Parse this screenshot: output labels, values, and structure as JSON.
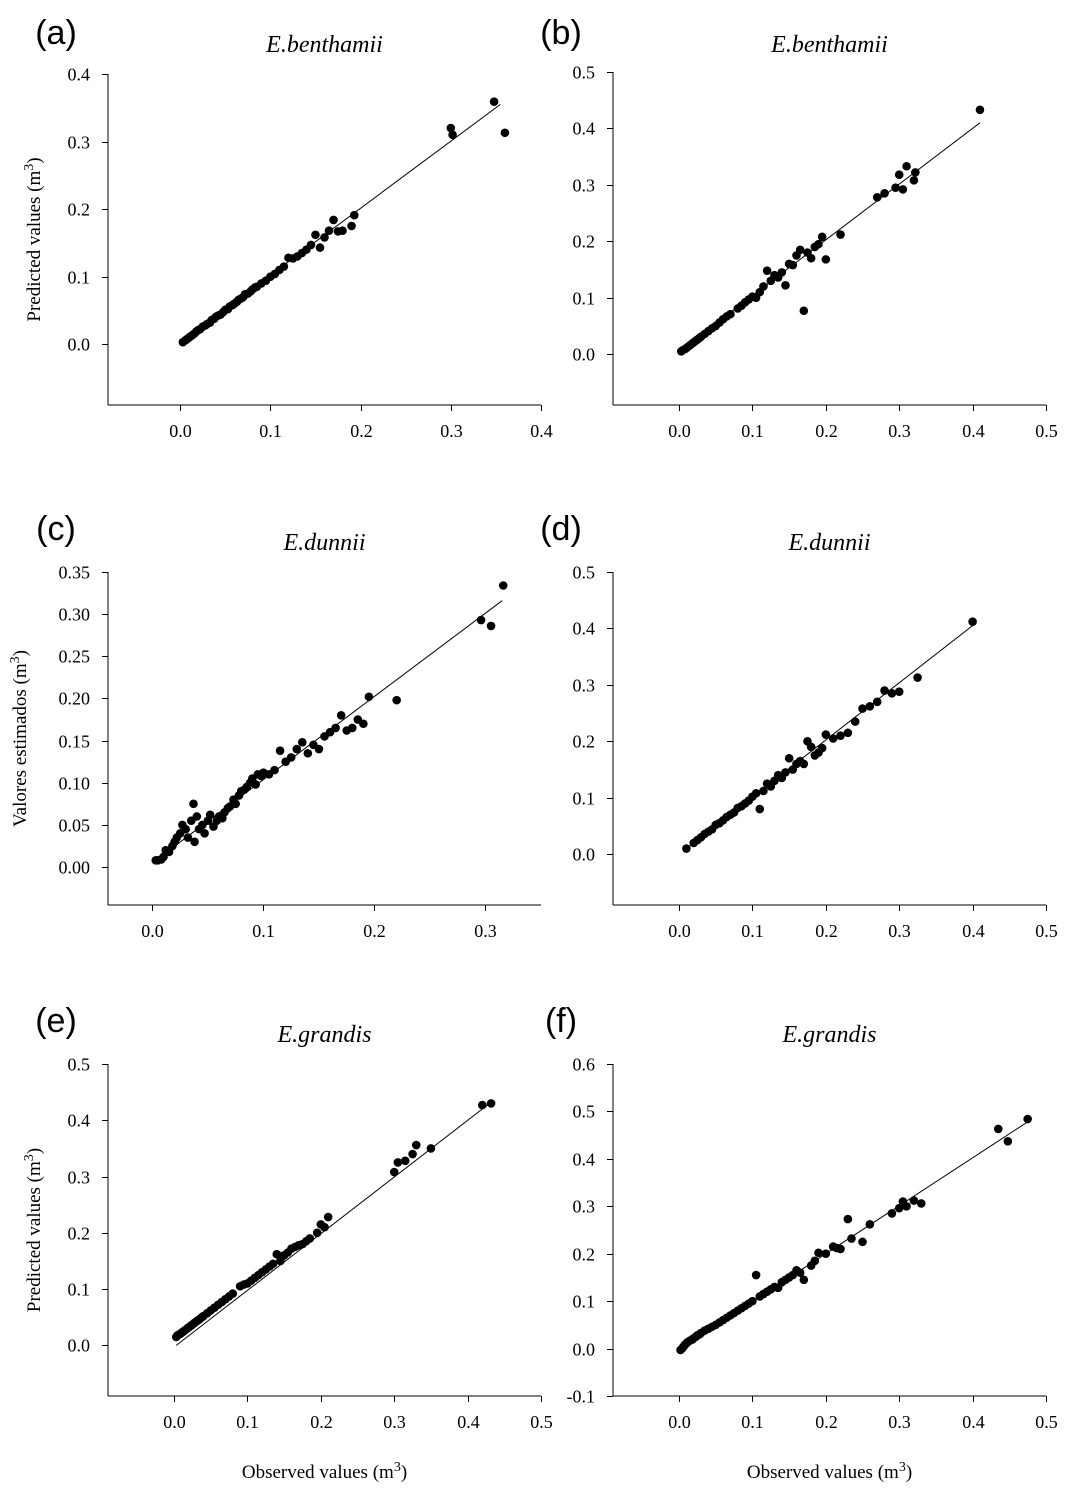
{
  "chart_data": [
    {
      "type": "scatter",
      "panel": "(a)",
      "title": "E.benthamii",
      "ylabel": "Predicted values (m3)",
      "xlabel": "",
      "xlim": [
        -0.08,
        0.4
      ],
      "ylim": [
        -0.09,
        0.4
      ],
      "xticks": [
        0.0,
        0.1,
        0.2,
        0.3,
        0.4
      ],
      "xtick_labels": [
        "0.0",
        "0.1",
        "0.2",
        "0.3",
        "0.4"
      ],
      "yticks": [
        0.0,
        0.1,
        0.2,
        0.3,
        0.4
      ],
      "ytick_labels": [
        "0.0",
        "0.1",
        "0.2",
        "0.3",
        "0.4"
      ],
      "fit_line": {
        "x": [
          0.0,
          0.355
        ],
        "y": [
          0.003,
          0.355
        ]
      },
      "x": [
        0.003,
        0.006,
        0.008,
        0.01,
        0.012,
        0.014,
        0.016,
        0.018,
        0.02,
        0.022,
        0.025,
        0.028,
        0.03,
        0.033,
        0.035,
        0.038,
        0.04,
        0.043,
        0.045,
        0.048,
        0.05,
        0.053,
        0.055,
        0.058,
        0.06,
        0.063,
        0.065,
        0.068,
        0.07,
        0.072,
        0.075,
        0.078,
        0.08,
        0.083,
        0.085,
        0.09,
        0.095,
        0.1,
        0.105,
        0.11,
        0.115,
        0.12,
        0.125,
        0.13,
        0.135,
        0.14,
        0.145,
        0.15,
        0.155,
        0.16,
        0.165,
        0.17,
        0.175,
        0.18,
        0.19,
        0.193,
        0.3,
        0.302,
        0.348,
        0.36
      ],
      "y": [
        0.003,
        0.006,
        0.008,
        0.01,
        0.012,
        0.014,
        0.016,
        0.019,
        0.021,
        0.022,
        0.026,
        0.028,
        0.03,
        0.032,
        0.036,
        0.038,
        0.041,
        0.043,
        0.044,
        0.048,
        0.051,
        0.052,
        0.056,
        0.058,
        0.06,
        0.063,
        0.066,
        0.068,
        0.07,
        0.074,
        0.075,
        0.078,
        0.081,
        0.084,
        0.085,
        0.09,
        0.094,
        0.1,
        0.104,
        0.11,
        0.115,
        0.128,
        0.127,
        0.13,
        0.135,
        0.14,
        0.147,
        0.162,
        0.143,
        0.158,
        0.168,
        0.184,
        0.167,
        0.168,
        0.175,
        0.191,
        0.32,
        0.31,
        0.359,
        0.313
      ]
    },
    {
      "type": "scatter",
      "panel": "(b)",
      "title": "E.benthamii",
      "ylabel": "",
      "xlabel": "",
      "xlim": [
        -0.09,
        0.5
      ],
      "ylim": [
        -0.09,
        0.5
      ],
      "xticks": [
        0.0,
        0.1,
        0.2,
        0.3,
        0.4,
        0.5
      ],
      "xtick_labels": [
        "0.0",
        "0.1",
        "0.2",
        "0.3",
        "0.4",
        "0.5"
      ],
      "yticks": [
        0.0,
        0.1,
        0.2,
        0.3,
        0.4,
        0.5
      ],
      "ytick_labels": [
        "0.0",
        "0.1",
        "0.2",
        "0.3",
        "0.4",
        "0.5"
      ],
      "fit_line": {
        "x": [
          0.0,
          0.41
        ],
        "y": [
          0.005,
          0.41
        ]
      },
      "x": [
        0.003,
        0.005,
        0.008,
        0.01,
        0.012,
        0.015,
        0.018,
        0.02,
        0.023,
        0.025,
        0.028,
        0.03,
        0.035,
        0.04,
        0.045,
        0.05,
        0.055,
        0.06,
        0.065,
        0.07,
        0.08,
        0.085,
        0.09,
        0.095,
        0.1,
        0.105,
        0.11,
        0.115,
        0.12,
        0.125,
        0.13,
        0.135,
        0.14,
        0.145,
        0.15,
        0.155,
        0.16,
        0.165,
        0.17,
        0.175,
        0.18,
        0.185,
        0.19,
        0.195,
        0.2,
        0.22,
        0.27,
        0.28,
        0.295,
        0.3,
        0.305,
        0.31,
        0.32,
        0.322,
        0.41
      ],
      "y": [
        0.005,
        0.007,
        0.009,
        0.011,
        0.013,
        0.016,
        0.019,
        0.021,
        0.024,
        0.026,
        0.029,
        0.031,
        0.036,
        0.041,
        0.046,
        0.05,
        0.056,
        0.062,
        0.067,
        0.071,
        0.081,
        0.086,
        0.092,
        0.097,
        0.102,
        0.1,
        0.11,
        0.12,
        0.148,
        0.13,
        0.14,
        0.136,
        0.145,
        0.122,
        0.16,
        0.158,
        0.175,
        0.185,
        0.077,
        0.18,
        0.17,
        0.19,
        0.195,
        0.208,
        0.168,
        0.212,
        0.278,
        0.285,
        0.295,
        0.318,
        0.292,
        0.333,
        0.308,
        0.322,
        0.433
      ]
    },
    {
      "type": "scatter",
      "panel": "(c)",
      "title": "E.dunnii",
      "ylabel": "Valores estimados (m3)",
      "xlabel": "",
      "xlim": [
        -0.04,
        0.35
      ],
      "ylim": [
        -0.045,
        0.35
      ],
      "xticks": [
        0.0,
        0.1,
        0.2,
        0.3
      ],
      "xtick_labels": [
        "0.0",
        "0.1",
        "0.2",
        "0.3"
      ],
      "yticks": [
        0.0,
        0.05,
        0.1,
        0.15,
        0.2,
        0.25,
        0.3,
        0.35
      ],
      "ytick_labels": [
        "0.00",
        "0.05",
        "0.10",
        "0.15",
        "0.20",
        "0.25",
        "0.30",
        "0.35"
      ],
      "fit_line": {
        "x": [
          0.003,
          0.315
        ],
        "y": [
          0.008,
          0.316
        ]
      },
      "x": [
        0.003,
        0.005,
        0.008,
        0.01,
        0.012,
        0.015,
        0.018,
        0.02,
        0.022,
        0.025,
        0.027,
        0.03,
        0.032,
        0.035,
        0.037,
        0.038,
        0.04,
        0.042,
        0.045,
        0.047,
        0.05,
        0.052,
        0.055,
        0.058,
        0.06,
        0.063,
        0.065,
        0.068,
        0.07,
        0.073,
        0.075,
        0.078,
        0.08,
        0.083,
        0.085,
        0.088,
        0.09,
        0.093,
        0.095,
        0.098,
        0.1,
        0.105,
        0.11,
        0.115,
        0.12,
        0.125,
        0.13,
        0.135,
        0.14,
        0.145,
        0.15,
        0.155,
        0.16,
        0.165,
        0.17,
        0.175,
        0.18,
        0.185,
        0.19,
        0.195,
        0.22,
        0.296,
        0.305,
        0.316
      ],
      "y": [
        0.008,
        0.008,
        0.009,
        0.012,
        0.02,
        0.018,
        0.025,
        0.03,
        0.035,
        0.04,
        0.05,
        0.045,
        0.035,
        0.055,
        0.075,
        0.03,
        0.06,
        0.045,
        0.05,
        0.04,
        0.055,
        0.062,
        0.048,
        0.055,
        0.06,
        0.058,
        0.065,
        0.07,
        0.072,
        0.08,
        0.075,
        0.085,
        0.09,
        0.092,
        0.095,
        0.1,
        0.105,
        0.098,
        0.11,
        0.108,
        0.112,
        0.11,
        0.115,
        0.138,
        0.125,
        0.13,
        0.14,
        0.148,
        0.135,
        0.145,
        0.14,
        0.155,
        0.16,
        0.165,
        0.18,
        0.162,
        0.165,
        0.175,
        0.17,
        0.202,
        0.198,
        0.293,
        0.286,
        0.334
      ]
    },
    {
      "type": "scatter",
      "panel": "(d)",
      "title": "E.dunnii",
      "ylabel": "",
      "xlabel": "",
      "xlim": [
        -0.09,
        0.5
      ],
      "ylim": [
        -0.09,
        0.5
      ],
      "xticks": [
        0.0,
        0.1,
        0.2,
        0.3,
        0.4,
        0.5
      ],
      "xtick_labels": [
        "0.0",
        "0.1",
        "0.2",
        "0.3",
        "0.4",
        "0.5"
      ],
      "yticks": [
        0.0,
        0.1,
        0.2,
        0.3,
        0.4,
        0.5
      ],
      "ytick_labels": [
        "0.0",
        "0.1",
        "0.2",
        "0.3",
        "0.4",
        "0.5"
      ],
      "fit_line": {
        "x": [
          0.01,
          0.4
        ],
        "y": [
          0.01,
          0.405
        ]
      },
      "x": [
        0.01,
        0.02,
        0.025,
        0.03,
        0.035,
        0.04,
        0.045,
        0.05,
        0.055,
        0.06,
        0.065,
        0.07,
        0.075,
        0.08,
        0.085,
        0.09,
        0.095,
        0.1,
        0.105,
        0.11,
        0.115,
        0.12,
        0.125,
        0.13,
        0.135,
        0.14,
        0.145,
        0.15,
        0.155,
        0.16,
        0.165,
        0.17,
        0.175,
        0.18,
        0.185,
        0.19,
        0.195,
        0.2,
        0.21,
        0.22,
        0.23,
        0.24,
        0.25,
        0.26,
        0.27,
        0.28,
        0.29,
        0.3,
        0.325,
        0.4
      ],
      "y": [
        0.01,
        0.02,
        0.025,
        0.03,
        0.036,
        0.04,
        0.044,
        0.052,
        0.055,
        0.06,
        0.066,
        0.07,
        0.074,
        0.082,
        0.085,
        0.09,
        0.095,
        0.102,
        0.108,
        0.08,
        0.112,
        0.125,
        0.12,
        0.13,
        0.14,
        0.135,
        0.145,
        0.17,
        0.15,
        0.16,
        0.165,
        0.16,
        0.2,
        0.19,
        0.175,
        0.18,
        0.188,
        0.212,
        0.205,
        0.21,
        0.215,
        0.235,
        0.258,
        0.262,
        0.27,
        0.29,
        0.285,
        0.288,
        0.313,
        0.412
      ]
    },
    {
      "type": "scatter",
      "panel": "(e)",
      "title": "E.grandis",
      "ylabel": "Predicted values (m3)",
      "xlabel": "Observed values (m3)",
      "xlim": [
        -0.09,
        0.5
      ],
      "ylim": [
        -0.09,
        0.5
      ],
      "xticks": [
        0.0,
        0.1,
        0.2,
        0.3,
        0.4,
        0.5
      ],
      "xtick_labels": [
        "0.0",
        "0.1",
        "0.2",
        "0.3",
        "0.4",
        "0.5"
      ],
      "yticks": [
        0.0,
        0.1,
        0.2,
        0.3,
        0.4,
        0.5
      ],
      "ytick_labels": [
        "0.0",
        "0.1",
        "0.2",
        "0.3",
        "0.4",
        "0.5"
      ],
      "fit_line": {
        "x": [
          0.003,
          0.43
        ],
        "y": [
          0.0,
          0.43
        ]
      },
      "x": [
        0.003,
        0.005,
        0.008,
        0.01,
        0.012,
        0.015,
        0.018,
        0.02,
        0.023,
        0.025,
        0.028,
        0.03,
        0.033,
        0.035,
        0.038,
        0.04,
        0.045,
        0.05,
        0.055,
        0.06,
        0.065,
        0.07,
        0.075,
        0.08,
        0.09,
        0.095,
        0.1,
        0.105,
        0.11,
        0.115,
        0.12,
        0.125,
        0.13,
        0.135,
        0.14,
        0.145,
        0.15,
        0.155,
        0.16,
        0.165,
        0.17,
        0.175,
        0.18,
        0.185,
        0.195,
        0.2,
        0.205,
        0.21,
        0.3,
        0.305,
        0.315,
        0.325,
        0.33,
        0.35,
        0.42,
        0.432
      ],
      "y": [
        0.015,
        0.018,
        0.02,
        0.022,
        0.024,
        0.027,
        0.03,
        0.032,
        0.035,
        0.037,
        0.04,
        0.042,
        0.045,
        0.047,
        0.05,
        0.052,
        0.057,
        0.062,
        0.067,
        0.072,
        0.077,
        0.082,
        0.087,
        0.092,
        0.105,
        0.108,
        0.11,
        0.115,
        0.12,
        0.125,
        0.13,
        0.135,
        0.14,
        0.145,
        0.162,
        0.15,
        0.16,
        0.165,
        0.172,
        0.175,
        0.178,
        0.18,
        0.185,
        0.19,
        0.2,
        0.215,
        0.21,
        0.228,
        0.308,
        0.325,
        0.328,
        0.34,
        0.356,
        0.35,
        0.427,
        0.43
      ]
    },
    {
      "type": "scatter",
      "panel": "(f)",
      "title": "E.grandis",
      "ylabel": "",
      "xlabel": "Observed values (m3)",
      "xlim": [
        -0.09,
        0.5
      ],
      "ylim": [
        -0.1,
        0.6
      ],
      "xticks": [
        0.0,
        0.1,
        0.2,
        0.3,
        0.4,
        0.5
      ],
      "xtick_labels": [
        "0.0",
        "0.1",
        "0.2",
        "0.3",
        "0.4",
        "0.5"
      ],
      "yticks": [
        -0.1,
        0.0,
        0.1,
        0.2,
        0.3,
        0.4,
        0.5,
        0.6
      ],
      "ytick_labels": [
        "-0.1",
        "0.0",
        "0.1",
        "0.2",
        "0.3",
        "0.4",
        "0.5",
        "0.6"
      ],
      "fit_line": {
        "x": [
          0.0,
          0.475
        ],
        "y": [
          -0.002,
          0.478
        ]
      },
      "x": [
        0.002,
        0.004,
        0.006,
        0.008,
        0.01,
        0.012,
        0.015,
        0.018,
        0.02,
        0.023,
        0.025,
        0.028,
        0.03,
        0.035,
        0.04,
        0.045,
        0.05,
        0.055,
        0.06,
        0.065,
        0.07,
        0.075,
        0.08,
        0.085,
        0.09,
        0.095,
        0.1,
        0.105,
        0.11,
        0.115,
        0.12,
        0.125,
        0.13,
        0.135,
        0.14,
        0.145,
        0.15,
        0.155,
        0.16,
        0.165,
        0.17,
        0.18,
        0.185,
        0.19,
        0.2,
        0.21,
        0.215,
        0.22,
        0.23,
        0.235,
        0.25,
        0.26,
        0.29,
        0.3,
        0.305,
        0.31,
        0.32,
        0.33,
        0.435,
        0.448,
        0.475
      ],
      "y": [
        -0.003,
        0.0,
        0.004,
        0.008,
        0.011,
        0.014,
        0.017,
        0.019,
        0.022,
        0.025,
        0.028,
        0.03,
        0.033,
        0.038,
        0.042,
        0.046,
        0.05,
        0.055,
        0.06,
        0.065,
        0.07,
        0.075,
        0.08,
        0.085,
        0.09,
        0.095,
        0.1,
        0.155,
        0.11,
        0.115,
        0.12,
        0.125,
        0.13,
        0.128,
        0.14,
        0.145,
        0.15,
        0.155,
        0.165,
        0.16,
        0.145,
        0.175,
        0.185,
        0.202,
        0.2,
        0.215,
        0.212,
        0.21,
        0.273,
        0.232,
        0.225,
        0.262,
        0.285,
        0.296,
        0.31,
        0.3,
        0.312,
        0.306,
        0.463,
        0.437,
        0.484
      ]
    }
  ]
}
